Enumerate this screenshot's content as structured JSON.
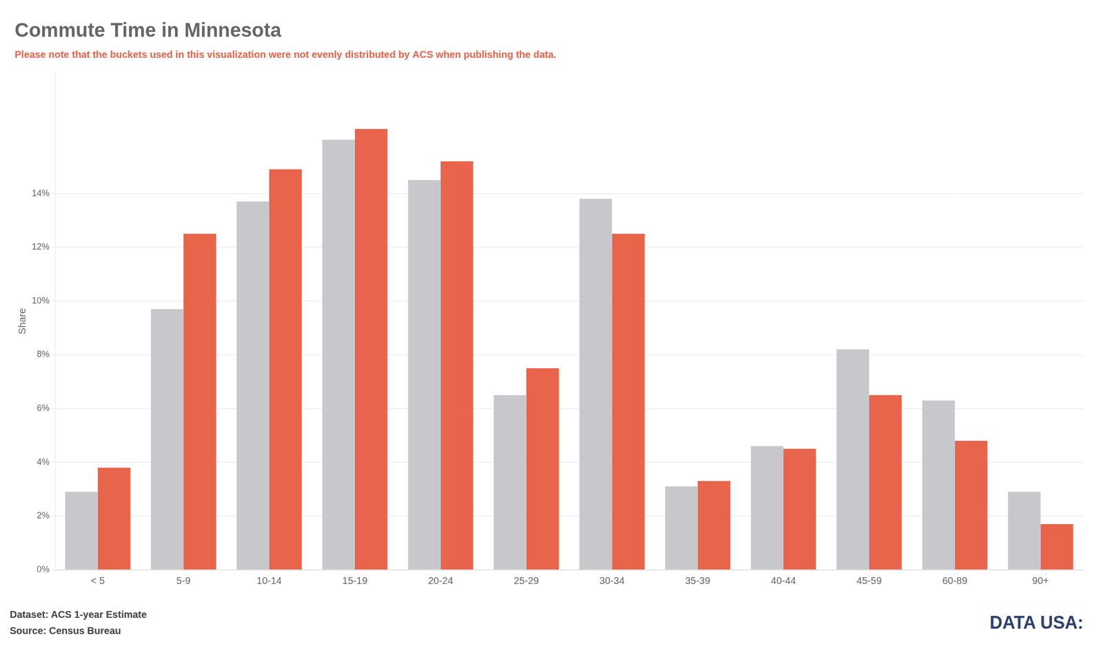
{
  "chart_data": {
    "type": "bar",
    "title": "Commute Time in Minnesota",
    "subtitle": "Please note that the buckets used in this visualization were not evenly distributed by ACS when publishing the data.",
    "y_label": "Share",
    "categories": [
      "< 5",
      "5-9",
      "10-14",
      "15-19",
      "20-24",
      "25-29",
      "30-34",
      "35-39",
      "40-44",
      "45-59",
      "60-89",
      "90+"
    ],
    "series": [
      {
        "color": "#c8c8cc",
        "values": [
          0.029,
          0.097,
          0.137,
          0.16,
          0.145,
          0.065,
          0.138,
          0.031,
          0.046,
          0.082,
          0.063,
          0.029
        ]
      },
      {
        "color": "#e8644a",
        "values": [
          0.038,
          0.125,
          0.149,
          0.164,
          0.152,
          0.075,
          0.125,
          0.033,
          0.045,
          0.065,
          0.048,
          0.017
        ]
      }
    ],
    "ylim": [
      0,
      0.185
    ],
    "yticks": [
      {
        "value": 0.0,
        "label": "0%"
      },
      {
        "value": 0.02,
        "label": "2%"
      },
      {
        "value": 0.04,
        "label": "4%"
      },
      {
        "value": 0.06,
        "label": "6%"
      },
      {
        "value": 0.08,
        "label": "8%"
      },
      {
        "value": 0.1,
        "label": "10%"
      },
      {
        "value": 0.12,
        "label": "12%"
      },
      {
        "value": 0.14,
        "label": "14%"
      }
    ],
    "grid": true,
    "annotations": [
      "Dataset: ACS 1-year Estimate",
      "Source: Census Bureau",
      "DATA USA:"
    ]
  }
}
